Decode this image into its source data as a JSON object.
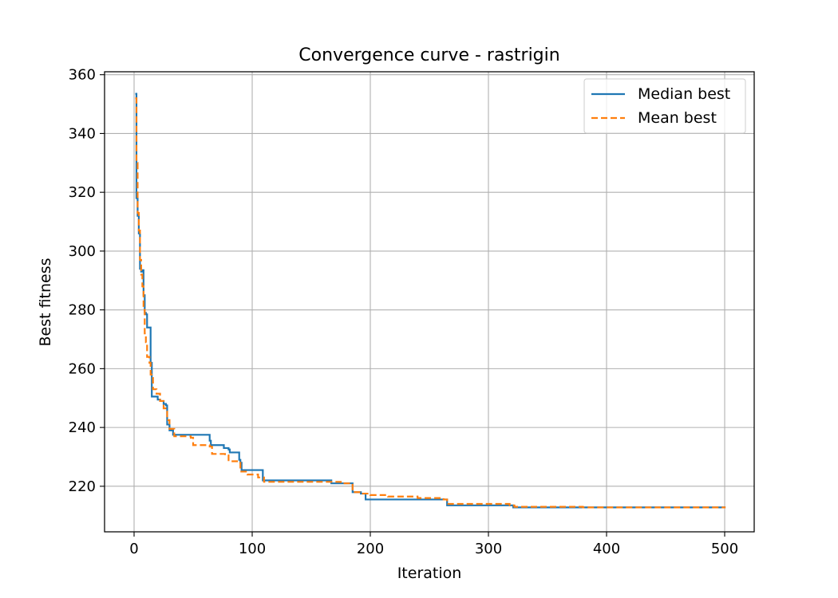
{
  "chart_data": {
    "type": "line",
    "title": "Convergence curve - rastrigin",
    "xlabel": "Iteration",
    "ylabel": "Best fitness",
    "xlim": [
      -25,
      525
    ],
    "ylim": [
      204.5,
      361
    ],
    "xticks": [
      0,
      100,
      200,
      300,
      400,
      500
    ],
    "yticks": [
      220,
      240,
      260,
      280,
      300,
      320,
      340,
      360
    ],
    "grid": true,
    "legend_position": "top-right",
    "series": [
      {
        "name": "Median best",
        "color": "#1f77b4",
        "style": "solid",
        "step": true,
        "points": [
          [
            1,
            353.5
          ],
          [
            2,
            318
          ],
          [
            3,
            312
          ],
          [
            4,
            306
          ],
          [
            5,
            294
          ],
          [
            6,
            293
          ],
          [
            7,
            293.5
          ],
          [
            8,
            285
          ],
          [
            9,
            279
          ],
          [
            10,
            278.5
          ],
          [
            11,
            274
          ],
          [
            13,
            274
          ],
          [
            14,
            262
          ],
          [
            15,
            250.5
          ],
          [
            19,
            250.5
          ],
          [
            20,
            249.5
          ],
          [
            22,
            249
          ],
          [
            25,
            248
          ],
          [
            27,
            247.5
          ],
          [
            28,
            241
          ],
          [
            30,
            239
          ],
          [
            33,
            237.5
          ],
          [
            62,
            237.5
          ],
          [
            64,
            235.5
          ],
          [
            65,
            234
          ],
          [
            75,
            234
          ],
          [
            76,
            233
          ],
          [
            80,
            232.5
          ],
          [
            81,
            231.5
          ],
          [
            88,
            231.5
          ],
          [
            89,
            229
          ],
          [
            90,
            228
          ],
          [
            91,
            225.5
          ],
          [
            108,
            225.5
          ],
          [
            109,
            222
          ],
          [
            166,
            222
          ],
          [
            167,
            221
          ],
          [
            184,
            221
          ],
          [
            185,
            218
          ],
          [
            192,
            217.5
          ],
          [
            196,
            215.5
          ],
          [
            262,
            215.5
          ],
          [
            265,
            213.5
          ],
          [
            320,
            213.5
          ],
          [
            321,
            212.8
          ],
          [
            500,
            212.5
          ]
        ]
      },
      {
        "name": "Mean best",
        "color": "#ff7f0e",
        "style": "dashed",
        "step": true,
        "points": [
          [
            1,
            352
          ],
          [
            2,
            330
          ],
          [
            3,
            313
          ],
          [
            4,
            307
          ],
          [
            5,
            297
          ],
          [
            6,
            292
          ],
          [
            7,
            288
          ],
          [
            8,
            280
          ],
          [
            9,
            272
          ],
          [
            10,
            269
          ],
          [
            11,
            264
          ],
          [
            13,
            262
          ],
          [
            14,
            258
          ],
          [
            16,
            253
          ],
          [
            19,
            251.5
          ],
          [
            22,
            249
          ],
          [
            25,
            246.5
          ],
          [
            28,
            242.5
          ],
          [
            30,
            239.5
          ],
          [
            34,
            237
          ],
          [
            48,
            236.5
          ],
          [
            50,
            234
          ],
          [
            64,
            233.5
          ],
          [
            66,
            231
          ],
          [
            77,
            230.5
          ],
          [
            80,
            228.5
          ],
          [
            88,
            228
          ],
          [
            90,
            225
          ],
          [
            96,
            224
          ],
          [
            105,
            223
          ],
          [
            110,
            221.5
          ],
          [
            175,
            221
          ],
          [
            185,
            218
          ],
          [
            192,
            217.5
          ],
          [
            200,
            217
          ],
          [
            215,
            216.5
          ],
          [
            240,
            216
          ],
          [
            262,
            215.5
          ],
          [
            265,
            214
          ],
          [
            318,
            213.5
          ],
          [
            322,
            213
          ],
          [
            380,
            212.8
          ],
          [
            500,
            212.5
          ]
        ]
      }
    ]
  }
}
